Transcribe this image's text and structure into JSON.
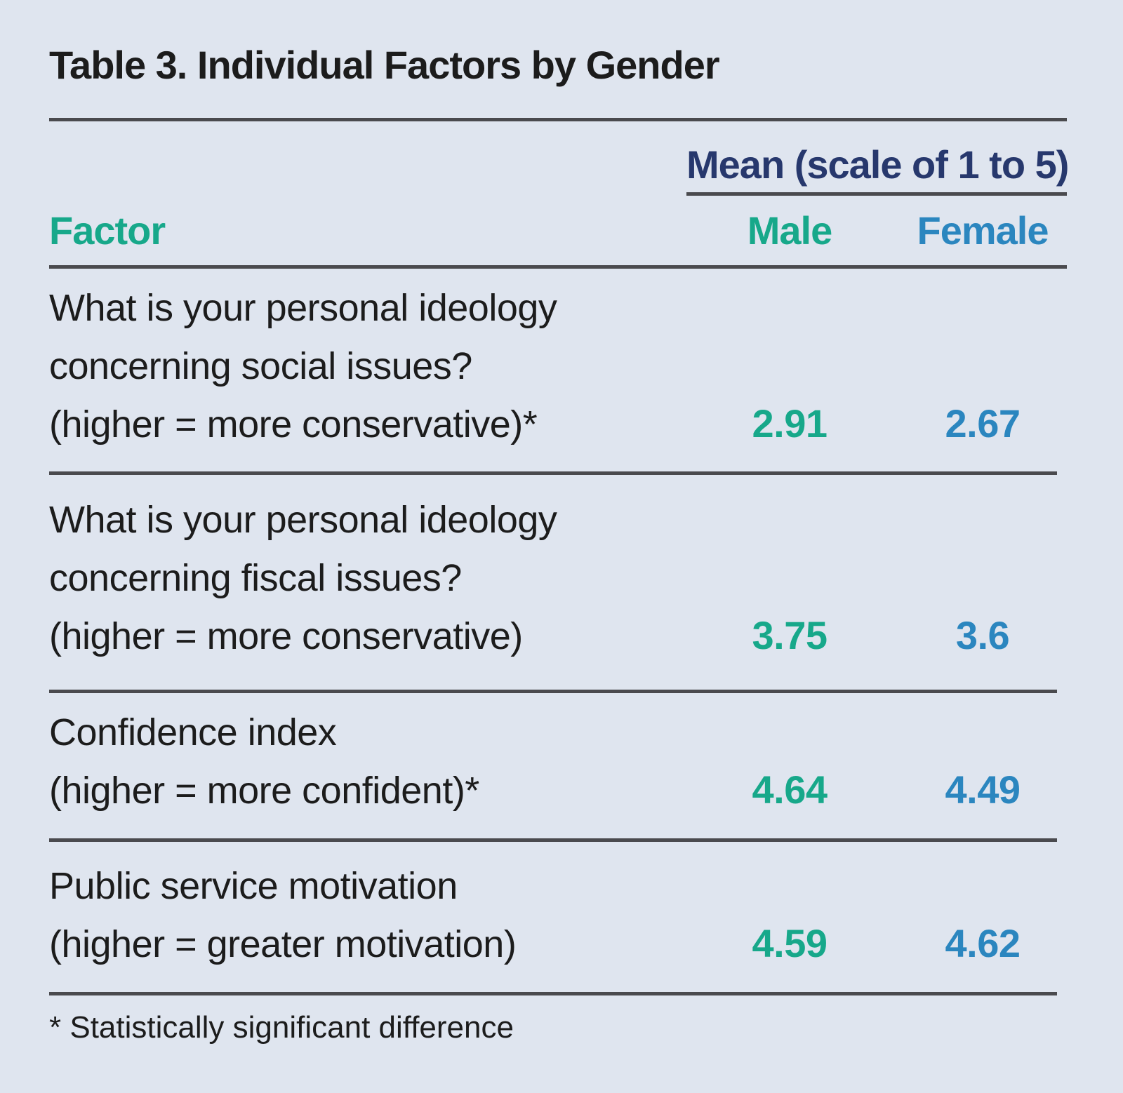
{
  "title": "Table 3. Individual Factors by Gender",
  "header": {
    "span_label": "Mean (scale of 1 to 5)",
    "factor": "Factor",
    "male": "Male",
    "female": "Female"
  },
  "rows": [
    {
      "lines": [
        "What is your personal ideology",
        "concerning social issues?",
        "(higher = more conservative)*"
      ],
      "male": "2.91",
      "female": "2.67"
    },
    {
      "lines": [
        "What is your personal ideology",
        "concerning fiscal issues?",
        "(higher = more conservative)"
      ],
      "male": "3.75",
      "female": "3.6"
    },
    {
      "lines": [
        "Confidence index",
        "(higher = more confident)*"
      ],
      "male": "4.64",
      "female": "4.49"
    },
    {
      "lines": [
        "Public service motivation",
        "(higher = greater motivation)"
      ],
      "male": "4.59",
      "female": "4.62"
    }
  ],
  "footnote": "* Statistically significant difference",
  "colors": {
    "background": "#dfe5ef",
    "male": "#17a88a",
    "female": "#2b86bf",
    "span_label": "#27386d",
    "rule": "#4a4a4e"
  }
}
